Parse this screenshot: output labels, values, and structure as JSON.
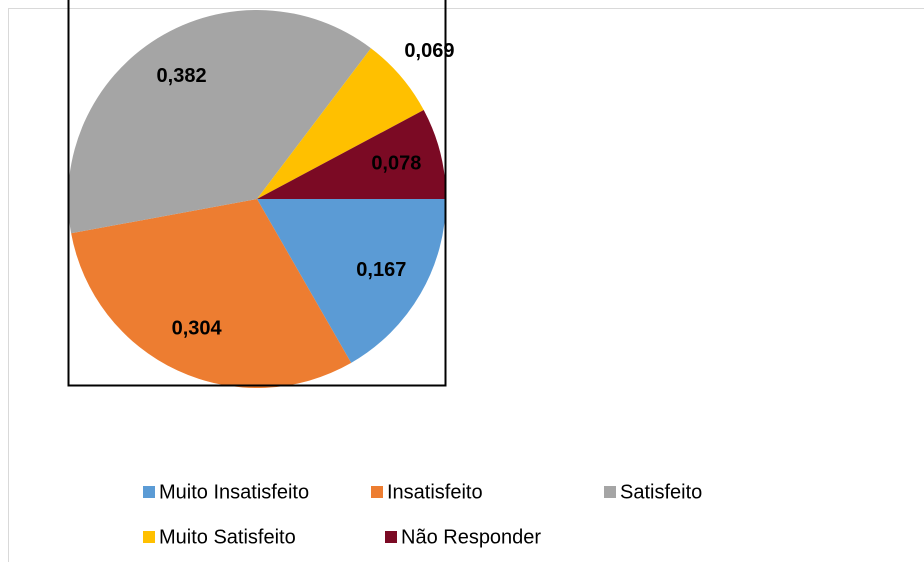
{
  "chart_data": {
    "type": "pie",
    "categories": [
      "Muito Insatisfeito",
      "Insatisfeito",
      "Satisfeito",
      "Muito Satisfeito",
      "Não Responder"
    ],
    "values": [
      0.167,
      0.304,
      0.382,
      0.069,
      0.078
    ],
    "value_labels": [
      "0,167",
      "0,304",
      "0,382",
      "0,069",
      "0,078"
    ],
    "colors": [
      "#5b9bd5",
      "#ed7d31",
      "#a5a5a5",
      "#ffc000",
      "#7b0a24"
    ],
    "legend": "bottom"
  }
}
